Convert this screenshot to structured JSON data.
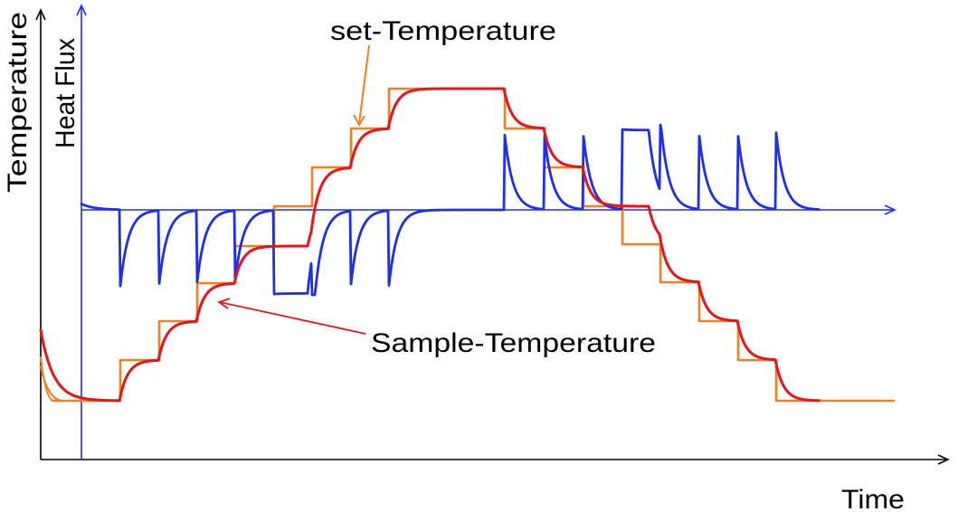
{
  "labels": {
    "temperature_axis": "Temperature",
    "heat_flux_axis": "Heat Flux",
    "set_temperature": "set-Temperature",
    "sample_temperature": "Sample-Temperature",
    "time_axis": "Time"
  },
  "colors": {
    "axis": "#000000",
    "heat_flux": "#1f2fe6",
    "set_temperature": "#f08020",
    "sample_temperature": "#e8141c"
  }
}
